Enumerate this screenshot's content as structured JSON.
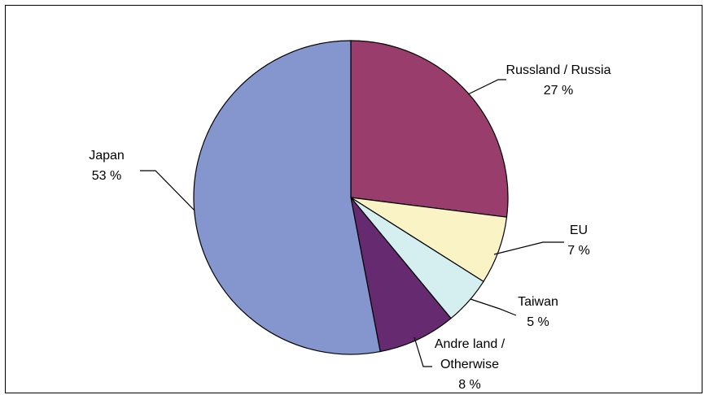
{
  "chart_data": {
    "type": "pie",
    "title": "",
    "legend": "none",
    "slices": [
      {
        "label_lines": [
          "Russland / Russia"
        ],
        "value": 27,
        "value_text": "27 %",
        "color": "#993D6C"
      },
      {
        "label_lines": [
          "EU"
        ],
        "value": 7,
        "value_text": "7 %",
        "color": "#FAF3C6"
      },
      {
        "label_lines": [
          "Taiwan"
        ],
        "value": 5,
        "value_text": "5 %",
        "color": "#D5EEF0"
      },
      {
        "label_lines": [
          "Andre land /",
          "Otherwise"
        ],
        "value": 8,
        "value_text": "8 %",
        "color": "#662A71"
      },
      {
        "label_lines": [
          "Japan"
        ],
        "value": 53,
        "value_text": "53 %",
        "color": "#8496CD"
      }
    ]
  }
}
